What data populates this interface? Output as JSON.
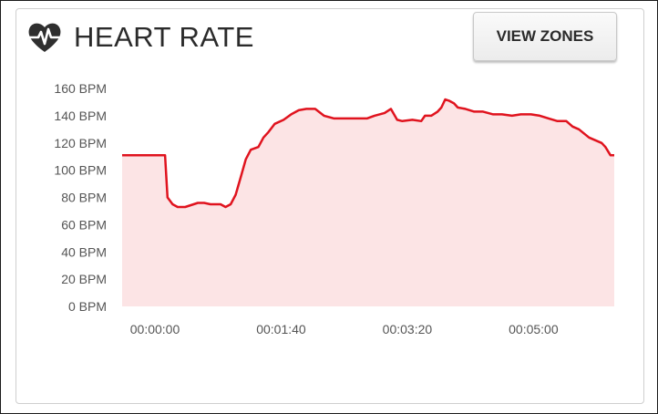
{
  "card": {
    "title": "HEART RATE",
    "icon": "heart-rate-icon",
    "view_zones_label": "VIEW ZONES"
  },
  "colors": {
    "line": "#e0131e",
    "fill": "#fce4e5",
    "text": "#2b2b2b"
  },
  "chart_data": {
    "type": "area",
    "title": "HEART RATE",
    "xlabel": "",
    "ylabel": "",
    "ylim": [
      0,
      160
    ],
    "xlim": [
      0,
      390
    ],
    "y_tick_labels": [
      "0 BPM",
      "20 BPM",
      "40 BPM",
      "60 BPM",
      "80 BPM",
      "100 BPM",
      "120 BPM",
      "140 BPM",
      "160 BPM"
    ],
    "y_ticks": [
      0,
      20,
      40,
      60,
      80,
      100,
      120,
      140,
      160
    ],
    "x_tick_labels": [
      "00:00:00",
      "00:01:40",
      "00:03:20",
      "00:05:00"
    ],
    "x_ticks": [
      0,
      100,
      200,
      300
    ],
    "x_unit": "seconds",
    "grid": false,
    "series": [
      {
        "x": [
          0,
          33,
          34,
          36,
          40,
          44,
          50,
          60,
          65,
          70,
          78,
          82,
          86,
          90,
          94,
          98,
          102,
          108,
          112,
          116,
          121,
          128,
          134,
          140,
          146,
          153,
          160,
          168,
          175,
          182,
          194,
          200,
          208,
          213,
          218,
          222,
          230,
          237,
          240,
          245,
          250,
          253,
          256,
          259,
          263,
          266,
          272,
          279,
          286,
          294,
          301,
          309,
          316,
          324,
          331,
          338,
          345,
          352,
          357,
          362,
          370,
          375,
          380,
          383,
          387,
          390
        ],
        "y": [
          111,
          111,
          111,
          80,
          75,
          73,
          73,
          76,
          76,
          75,
          75,
          73,
          75,
          82,
          95,
          108,
          115,
          117,
          124,
          128,
          134,
          137,
          141,
          144,
          145,
          145,
          140,
          138,
          138,
          138,
          138,
          140,
          142,
          145,
          137,
          136,
          137,
          136,
          140,
          140,
          143,
          146,
          152,
          151,
          149,
          146,
          145,
          143,
          143,
          141,
          141,
          140,
          141,
          141,
          140,
          138,
          136,
          136,
          132,
          130,
          124,
          122,
          120,
          117,
          111,
          111
        ]
      }
    ]
  }
}
